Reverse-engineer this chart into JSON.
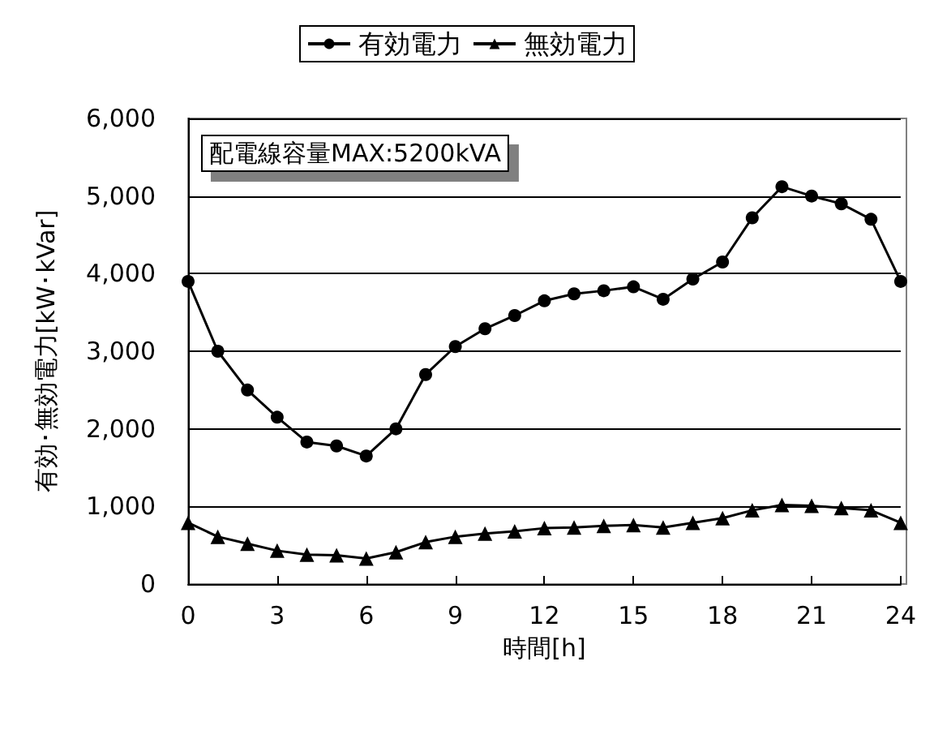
{
  "chart_data": {
    "type": "line",
    "xlabel": "時間[h]",
    "ylabel": "有効･無効電力[kW･kVar]",
    "x": [
      0,
      1,
      2,
      3,
      4,
      5,
      6,
      7,
      8,
      9,
      10,
      11,
      12,
      13,
      14,
      15,
      16,
      17,
      18,
      19,
      20,
      21,
      22,
      23,
      24
    ],
    "series": [
      {
        "name": "有効電力",
        "color": "#000000",
        "marker": "circle",
        "values": [
          3900,
          3000,
          2500,
          2150,
          1830,
          1780,
          1650,
          2000,
          2700,
          3060,
          3290,
          3460,
          3650,
          3740,
          3780,
          3830,
          3670,
          3930,
          4150,
          4720,
          5120,
          5000,
          4900,
          4700,
          3900
        ]
      },
      {
        "name": "無効電力",
        "color": "#000000",
        "marker": "triangle",
        "values": [
          790,
          610,
          520,
          430,
          380,
          370,
          330,
          410,
          540,
          610,
          650,
          680,
          720,
          730,
          750,
          760,
          730,
          790,
          850,
          950,
          1020,
          1010,
          980,
          950,
          790
        ]
      }
    ],
    "xlim": [
      0,
      24
    ],
    "xticks": [
      0,
      3,
      6,
      9,
      12,
      15,
      18,
      21,
      24
    ],
    "ylim": [
      0,
      6000
    ],
    "yticks": [
      0,
      {
        "value": 1000,
        "label": "1,000"
      },
      {
        "value": 2000,
        "label": "2,000"
      },
      {
        "value": 3000,
        "label": "3,000"
      },
      {
        "value": 4000,
        "label": "4,000"
      },
      {
        "value": 5000,
        "label": "5,000"
      },
      {
        "value": 6000,
        "label": "6,000"
      }
    ],
    "grid": "y",
    "legend": "top",
    "annotations": [
      "配電線容量MAX:5200kVA"
    ]
  }
}
